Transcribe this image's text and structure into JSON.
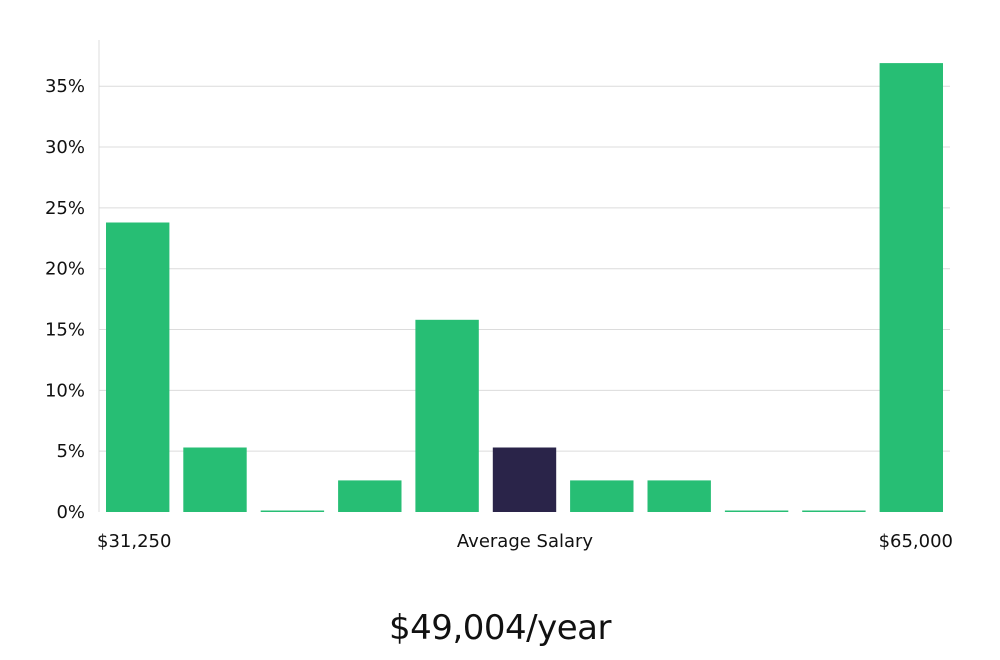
{
  "chart_data": {
    "type": "bar",
    "xlabel": "Average Salary",
    "x_range_labels": [
      "$31,250",
      "$65,000"
    ],
    "yticks": [
      "0%",
      "5%",
      "10%",
      "15%",
      "20%",
      "25%",
      "30%",
      "35%"
    ],
    "ylim": [
      0,
      38.8
    ],
    "values": [
      23.8,
      5.3,
      0,
      2.6,
      15.8,
      5.3,
      2.6,
      2.6,
      0,
      0,
      36.9
    ],
    "highlight_index": 5,
    "grid": true
  },
  "summary": "$49,004/year",
  "colors": {
    "bar": "#27be74",
    "highlight": "#2a2449",
    "grid": "#dcdcdc",
    "axis": "#dcdcdc"
  }
}
